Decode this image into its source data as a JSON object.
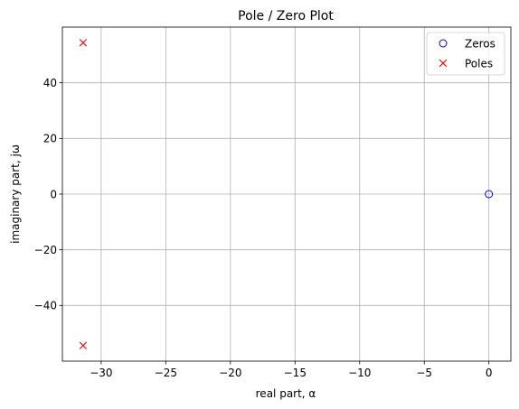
{
  "chart_data": {
    "type": "scatter",
    "title": "Pole / Zero Plot",
    "xlabel": "real part, α",
    "ylabel": "imaginary part, jω",
    "xlim": [
      -33.0,
      1.7
    ],
    "ylim": [
      -60.0,
      60.0
    ],
    "xticks": [
      -30,
      -25,
      -20,
      -15,
      -10,
      -5,
      0
    ],
    "yticks": [
      -40,
      -20,
      0,
      20,
      40
    ],
    "xtick_labels": [
      "−30",
      "−25",
      "−20",
      "−15",
      "−10",
      "−5",
      "0"
    ],
    "ytick_labels": [
      "−40",
      "−20",
      "0",
      "20",
      "40"
    ],
    "grid": true,
    "legend_position": "top-right",
    "series": [
      {
        "name": "Zeros",
        "marker": "o",
        "color": "#0000ff",
        "points": [
          {
            "x": 0,
            "y": 0
          }
        ]
      },
      {
        "name": "Poles",
        "marker": "x",
        "color": "#ff0000",
        "points": [
          {
            "x": -31.4,
            "y": 54.4
          },
          {
            "x": -31.4,
            "y": -54.4
          }
        ]
      }
    ]
  }
}
